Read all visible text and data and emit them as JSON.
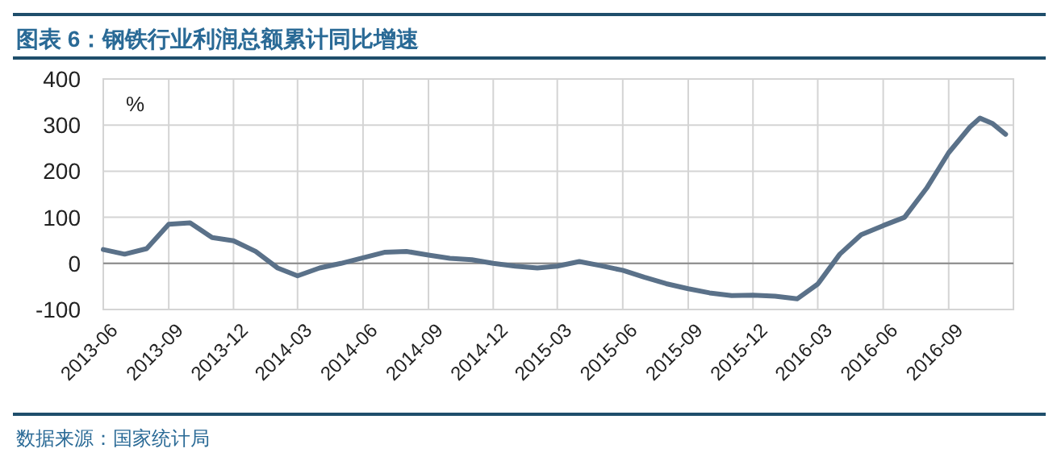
{
  "chart_data": {
    "type": "line",
    "title": "图表 6：钢铁行业利润总额累计同比增速",
    "ylabel": "%",
    "annotations": [
      "数据来源：国家统计局"
    ],
    "x": [
      "2013-06",
      "2013-07",
      "2013-08",
      "2013-09",
      "2013-10",
      "2013-11",
      "2013-12",
      "2014-01",
      "2014-02",
      "2014-03",
      "2014-04",
      "2014-05",
      "2014-06",
      "2014-07",
      "2014-08",
      "2014-09",
      "2014-10",
      "2014-11",
      "2014-12",
      "2015-01",
      "2015-02",
      "2015-03",
      "2015-04",
      "2015-05",
      "2015-06",
      "2015-07",
      "2015-08",
      "2015-09",
      "2015-10",
      "2015-11",
      "2015-12",
      "2016-01",
      "2016-02",
      "2016-03",
      "2016-04",
      "2016-05",
      "2016-06",
      "2016-07",
      "2016-08",
      "2016-09",
      "2016-10",
      "2016-10-15",
      "2016-11",
      "2016-11-20"
    ],
    "series": [
      {
        "color": "#5a7189",
        "values": [
          30,
          20,
          32,
          85,
          88,
          56,
          49,
          26,
          -10,
          -27,
          -10,
          0,
          12,
          24,
          26,
          18,
          11,
          8,
          0,
          -6,
          -10,
          -6,
          4,
          -5,
          -15,
          -30,
          -44,
          -55,
          -64,
          -70,
          -69,
          -71,
          -77,
          -45,
          20,
          62,
          82,
          100,
          163,
          240,
          296,
          315,
          304,
          280
        ]
      }
    ],
    "xlim": [
      "2013-06",
      "2016-12"
    ],
    "xticks": [
      "2013-06",
      "2013-09",
      "2013-12",
      "2014-03",
      "2014-06",
      "2014-09",
      "2014-12",
      "2015-03",
      "2015-06",
      "2015-09",
      "2015-12",
      "2016-03",
      "2016-06",
      "2016-09"
    ],
    "ylim": [
      -100,
      400
    ],
    "yticks": [
      -100,
      0,
      100,
      200,
      300,
      400
    ],
    "grid": true,
    "line_style": "solid",
    "marker": "none"
  }
}
